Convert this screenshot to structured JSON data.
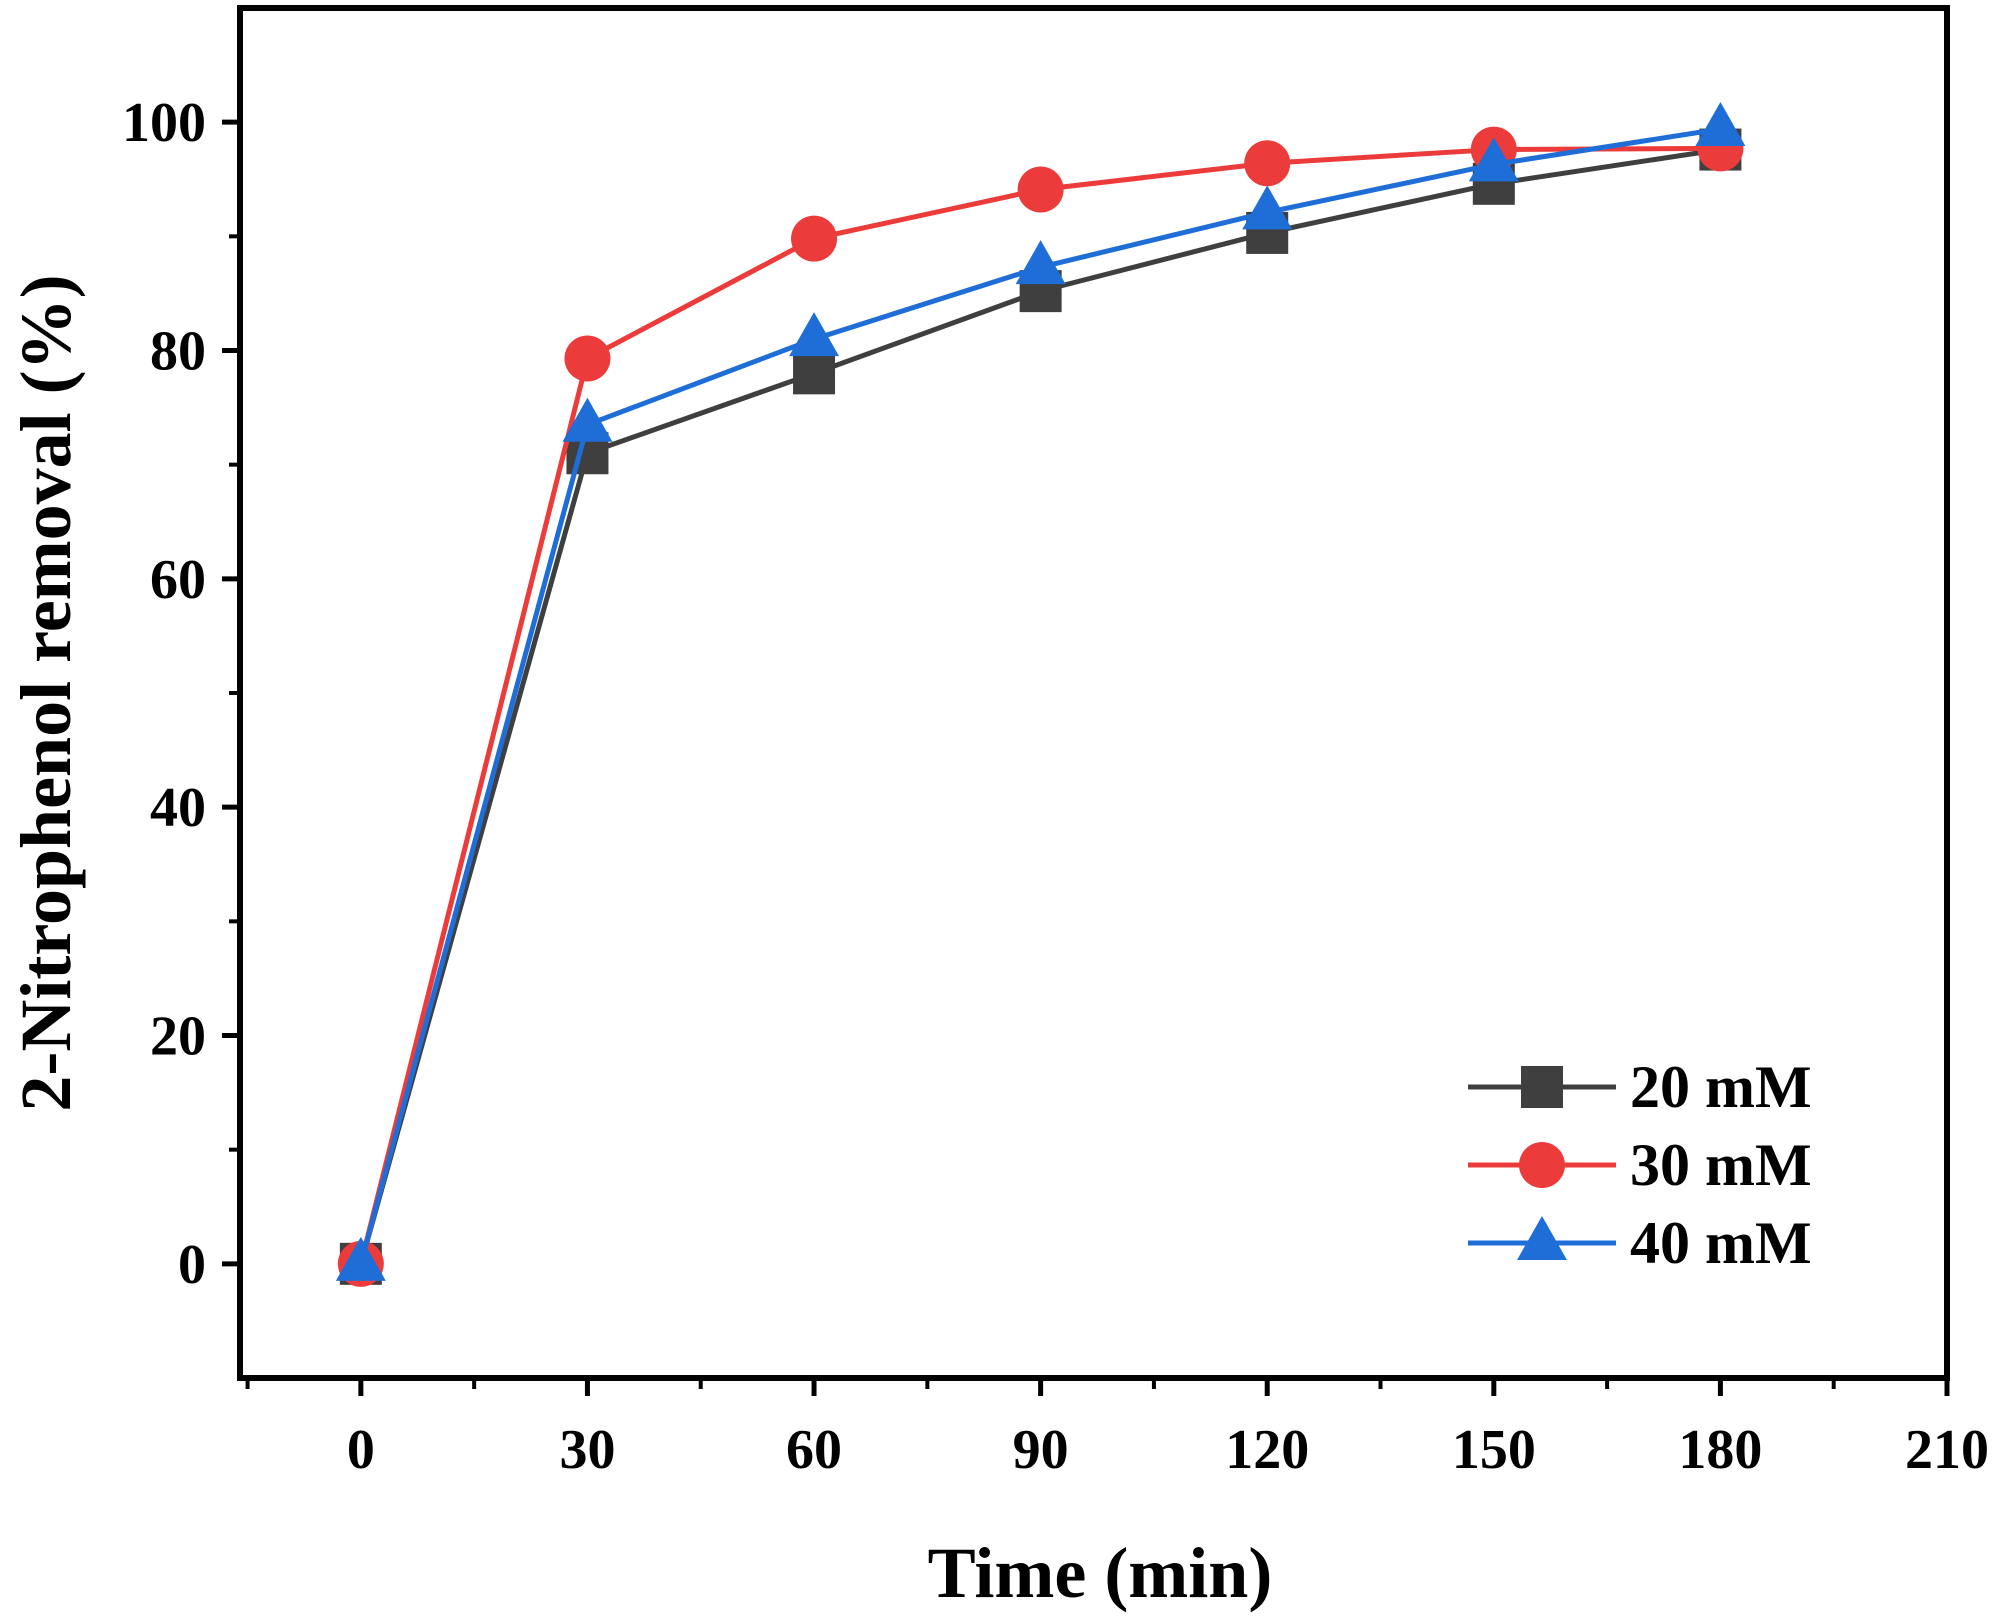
{
  "chart_data": {
    "type": "line",
    "title": "",
    "xlabel": "Time (min)",
    "ylabel": "2-Nitrophenol removal (%)",
    "xlim": [
      -16,
      210
    ],
    "ylim": [
      -10,
      110
    ],
    "xticks": [
      0,
      30,
      60,
      90,
      120,
      150,
      180,
      210
    ],
    "yticks": [
      0,
      20,
      40,
      60,
      80,
      100
    ],
    "x": [
      0,
      30,
      60,
      90,
      120,
      150,
      180
    ],
    "series": [
      {
        "name": "20 mM",
        "marker": "square",
        "color": "#3f3f3f",
        "values": [
          0,
          71,
          78,
          85.2,
          90.3,
          94.6,
          97.6
        ]
      },
      {
        "name": "30 mM",
        "marker": "circle",
        "color": "#ec3b3b",
        "values": [
          0,
          79.3,
          89.8,
          94.1,
          96.4,
          97.6,
          97.7
        ]
      },
      {
        "name": "40 mM",
        "marker": "triangle",
        "color": "#1f6ed8",
        "values": [
          0,
          73.5,
          81,
          87.3,
          92.1,
          96.3,
          99.4
        ]
      }
    ],
    "legend_position": "bottom-right",
    "grid": false
  }
}
